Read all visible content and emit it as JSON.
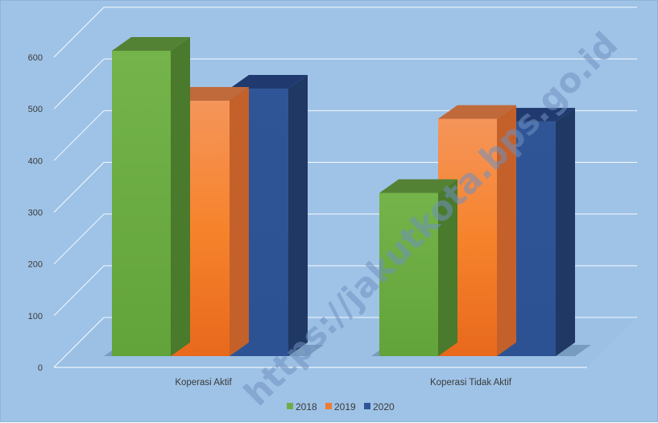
{
  "chart_data": {
    "type": "bar",
    "title": "",
    "xlabel": "",
    "ylabel": "",
    "categories": [
      "Koperasi Aktif",
      "Koperasi Tidak Aktif"
    ],
    "series": [
      {
        "name": "2018",
        "values": [
          556,
          297
        ],
        "color": "#70ad47"
      },
      {
        "name": "2019",
        "values": [
          465,
          432
        ],
        "color": "#ed7d31"
      },
      {
        "name": "2020",
        "values": [
          487,
          427
        ],
        "color": "#2f5597"
      }
    ],
    "ylim": [
      0,
      600
    ],
    "yticks": [
      0,
      100,
      200,
      300,
      400,
      500,
      600
    ],
    "grid": true,
    "legend_position": "bottom",
    "three_d": true
  },
  "watermark": "https://jakutkota.bps.go.id"
}
